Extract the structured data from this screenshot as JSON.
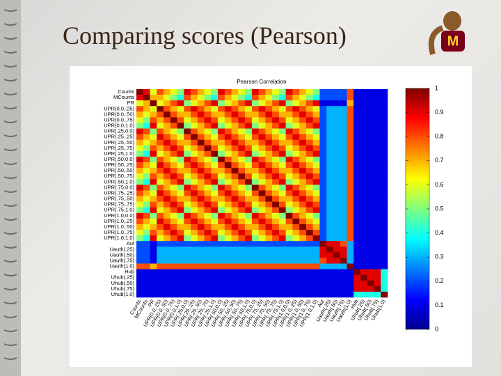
{
  "slide_title": "Comparing scores (Pearson)",
  "chart_data": {
    "type": "heatmap",
    "title": "Pearson Correlation",
    "colormap": "jet",
    "categories": [
      "Counts",
      "MCounts",
      "PR",
      "UPR(0.0,.25)",
      "UPR(0.0,.50)",
      "UPR(0.0,.75)",
      "UPR(0.0,1.0)",
      "UPR(.25,0.0)",
      "UPR(.25,.25)",
      "UPR(.25,.50)",
      "UPR(.25,.75)",
      "UPR(.25,1.0)",
      "UPR(.50,0.0)",
      "UPR(.50,.25)",
      "UPR(.50,.50)",
      "UPR(.50,.75)",
      "UPR(.50,1.0)",
      "UPR(.75,0.0)",
      "UPR(.75,.25)",
      "UPR(.75,.50)",
      "UPR(.75,.75)",
      "UPR(.75,1.0)",
      "UPR(1.0,0.0)",
      "UPR(1.0,.25)",
      "UPR(1.0,.50)",
      "UPR(1.0,.75)",
      "UPR(1.0,1.0)",
      "Aut",
      "Uauth(.25)",
      "Uauth(.50)",
      "Uauth(.75)",
      "Uauth(1.0)",
      "Hub",
      "Uhub(.25)",
      "Uhub(.50)",
      "Uhub(.75)",
      "Uhub(1.0)"
    ],
    "values": [
      [
        1,
        0.9,
        0.6,
        0.8,
        0.7,
        0.6,
        0.5,
        0.9,
        0.8,
        0.7,
        0.6,
        0.5,
        0.9,
        0.8,
        0.7,
        0.6,
        0.5,
        0.9,
        0.8,
        0.7,
        0.6,
        0.5,
        0.9,
        0.8,
        0.7,
        0.6,
        0.5,
        0.2,
        0.2,
        0.2,
        0.2,
        0.8,
        0.1,
        0.1,
        0.1,
        0.1,
        0.1
      ],
      [
        0.9,
        1,
        0.7,
        0.7,
        0.6,
        0.5,
        0.4,
        0.8,
        0.7,
        0.6,
        0.5,
        0.4,
        0.8,
        0.7,
        0.6,
        0.5,
        0.4,
        0.8,
        0.7,
        0.6,
        0.5,
        0.4,
        0.8,
        0.7,
        0.6,
        0.5,
        0.4,
        0.2,
        0.2,
        0.2,
        0.2,
        0.8,
        0.1,
        0.1,
        0.1,
        0.1,
        0.1
      ],
      [
        0.6,
        0.7,
        1,
        0.6,
        0.7,
        0.8,
        0.9,
        0.5,
        0.6,
        0.7,
        0.8,
        0.9,
        0.5,
        0.6,
        0.7,
        0.8,
        0.9,
        0.5,
        0.6,
        0.7,
        0.8,
        0.9,
        0.5,
        0.6,
        0.7,
        0.8,
        0.9,
        0.1,
        0.1,
        0.1,
        0.1,
        0.7,
        0.1,
        0.1,
        0.1,
        0.1,
        0.1
      ],
      [
        0.8,
        0.7,
        0.6,
        1,
        0.8,
        0.7,
        0.6,
        0.8,
        0.9,
        0.8,
        0.7,
        0.6,
        0.8,
        0.9,
        0.8,
        0.7,
        0.6,
        0.8,
        0.9,
        0.8,
        0.7,
        0.6,
        0.8,
        0.9,
        0.8,
        0.7,
        0.6,
        0.2,
        0.3,
        0.3,
        0.3,
        0.8,
        0.1,
        0.1,
        0.1,
        0.1,
        0.1
      ],
      [
        0.7,
        0.6,
        0.7,
        0.8,
        1,
        0.8,
        0.7,
        0.7,
        0.8,
        0.9,
        0.8,
        0.7,
        0.7,
        0.8,
        0.9,
        0.8,
        0.7,
        0.7,
        0.8,
        0.9,
        0.8,
        0.7,
        0.7,
        0.8,
        0.9,
        0.8,
        0.7,
        0.2,
        0.3,
        0.3,
        0.3,
        0.8,
        0.1,
        0.1,
        0.1,
        0.1,
        0.1
      ],
      [
        0.6,
        0.5,
        0.8,
        0.7,
        0.8,
        1,
        0.8,
        0.6,
        0.7,
        0.8,
        0.9,
        0.8,
        0.6,
        0.7,
        0.8,
        0.9,
        0.8,
        0.6,
        0.7,
        0.8,
        0.9,
        0.8,
        0.6,
        0.7,
        0.8,
        0.9,
        0.8,
        0.2,
        0.3,
        0.3,
        0.3,
        0.8,
        0.1,
        0.1,
        0.1,
        0.1,
        0.1
      ],
      [
        0.5,
        0.4,
        0.9,
        0.6,
        0.7,
        0.8,
        1,
        0.5,
        0.6,
        0.7,
        0.8,
        0.9,
        0.5,
        0.6,
        0.7,
        0.8,
        0.9,
        0.5,
        0.6,
        0.7,
        0.8,
        0.9,
        0.5,
        0.6,
        0.7,
        0.8,
        0.9,
        0.2,
        0.3,
        0.3,
        0.3,
        0.8,
        0.1,
        0.1,
        0.1,
        0.1,
        0.1
      ],
      [
        0.9,
        0.8,
        0.5,
        0.8,
        0.7,
        0.6,
        0.5,
        1,
        0.8,
        0.7,
        0.6,
        0.5,
        0.9,
        0.8,
        0.7,
        0.6,
        0.5,
        0.9,
        0.8,
        0.7,
        0.6,
        0.5,
        0.9,
        0.8,
        0.7,
        0.6,
        0.5,
        0.2,
        0.3,
        0.3,
        0.3,
        0.8,
        0.1,
        0.1,
        0.1,
        0.1,
        0.1
      ],
      [
        0.8,
        0.7,
        0.6,
        0.9,
        0.8,
        0.7,
        0.6,
        0.8,
        1,
        0.8,
        0.7,
        0.6,
        0.8,
        0.9,
        0.8,
        0.7,
        0.6,
        0.8,
        0.9,
        0.8,
        0.7,
        0.6,
        0.8,
        0.9,
        0.8,
        0.7,
        0.6,
        0.2,
        0.3,
        0.3,
        0.3,
        0.8,
        0.1,
        0.1,
        0.1,
        0.1,
        0.1
      ],
      [
        0.7,
        0.6,
        0.7,
        0.8,
        0.9,
        0.8,
        0.7,
        0.7,
        0.8,
        1,
        0.8,
        0.7,
        0.7,
        0.8,
        0.9,
        0.8,
        0.7,
        0.7,
        0.8,
        0.9,
        0.8,
        0.7,
        0.7,
        0.8,
        0.9,
        0.8,
        0.7,
        0.2,
        0.3,
        0.3,
        0.3,
        0.8,
        0.1,
        0.1,
        0.1,
        0.1,
        0.1
      ],
      [
        0.6,
        0.5,
        0.8,
        0.7,
        0.8,
        0.9,
        0.8,
        0.6,
        0.7,
        0.8,
        1,
        0.8,
        0.6,
        0.7,
        0.8,
        0.9,
        0.8,
        0.6,
        0.7,
        0.8,
        0.9,
        0.8,
        0.6,
        0.7,
        0.8,
        0.9,
        0.8,
        0.2,
        0.3,
        0.3,
        0.3,
        0.8,
        0.1,
        0.1,
        0.1,
        0.1,
        0.1
      ],
      [
        0.5,
        0.4,
        0.9,
        0.6,
        0.7,
        0.8,
        0.9,
        0.5,
        0.6,
        0.7,
        0.8,
        1,
        0.5,
        0.6,
        0.7,
        0.8,
        0.9,
        0.5,
        0.6,
        0.7,
        0.8,
        0.9,
        0.5,
        0.6,
        0.7,
        0.8,
        0.9,
        0.2,
        0.3,
        0.3,
        0.3,
        0.8,
        0.1,
        0.1,
        0.1,
        0.1,
        0.1
      ],
      [
        0.9,
        0.8,
        0.5,
        0.8,
        0.7,
        0.6,
        0.5,
        0.9,
        0.8,
        0.7,
        0.6,
        0.5,
        1,
        0.8,
        0.7,
        0.6,
        0.5,
        0.9,
        0.8,
        0.7,
        0.6,
        0.5,
        0.9,
        0.8,
        0.7,
        0.6,
        0.5,
        0.2,
        0.3,
        0.3,
        0.3,
        0.8,
        0.1,
        0.1,
        0.1,
        0.1,
        0.1
      ],
      [
        0.8,
        0.7,
        0.6,
        0.9,
        0.8,
        0.7,
        0.6,
        0.8,
        0.9,
        0.8,
        0.7,
        0.6,
        0.8,
        1,
        0.8,
        0.7,
        0.6,
        0.8,
        0.9,
        0.8,
        0.7,
        0.6,
        0.8,
        0.9,
        0.8,
        0.7,
        0.6,
        0.2,
        0.3,
        0.3,
        0.3,
        0.8,
        0.1,
        0.1,
        0.1,
        0.1,
        0.1
      ],
      [
        0.7,
        0.6,
        0.7,
        0.8,
        0.9,
        0.8,
        0.7,
        0.7,
        0.8,
        0.9,
        0.8,
        0.7,
        0.7,
        0.8,
        1,
        0.8,
        0.7,
        0.7,
        0.8,
        0.9,
        0.8,
        0.7,
        0.7,
        0.8,
        0.9,
        0.8,
        0.7,
        0.2,
        0.3,
        0.3,
        0.3,
        0.8,
        0.1,
        0.1,
        0.1,
        0.1,
        0.1
      ],
      [
        0.6,
        0.5,
        0.8,
        0.7,
        0.8,
        0.9,
        0.8,
        0.6,
        0.7,
        0.8,
        0.9,
        0.8,
        0.6,
        0.7,
        0.8,
        1,
        0.8,
        0.6,
        0.7,
        0.8,
        0.9,
        0.8,
        0.6,
        0.7,
        0.8,
        0.9,
        0.8,
        0.2,
        0.3,
        0.3,
        0.3,
        0.8,
        0.1,
        0.1,
        0.1,
        0.1,
        0.1
      ],
      [
        0.5,
        0.4,
        0.9,
        0.6,
        0.7,
        0.8,
        0.9,
        0.5,
        0.6,
        0.7,
        0.8,
        0.9,
        0.5,
        0.6,
        0.7,
        0.8,
        1,
        0.5,
        0.6,
        0.7,
        0.8,
        0.9,
        0.5,
        0.6,
        0.7,
        0.8,
        0.9,
        0.2,
        0.3,
        0.3,
        0.3,
        0.8,
        0.1,
        0.1,
        0.1,
        0.1,
        0.1
      ],
      [
        0.9,
        0.8,
        0.5,
        0.8,
        0.7,
        0.6,
        0.5,
        0.9,
        0.8,
        0.7,
        0.6,
        0.5,
        0.9,
        0.8,
        0.7,
        0.6,
        0.5,
        1,
        0.8,
        0.7,
        0.6,
        0.5,
        0.9,
        0.8,
        0.7,
        0.6,
        0.5,
        0.2,
        0.3,
        0.3,
        0.3,
        0.8,
        0.1,
        0.1,
        0.1,
        0.1,
        0.1
      ],
      [
        0.8,
        0.7,
        0.6,
        0.9,
        0.8,
        0.7,
        0.6,
        0.8,
        0.9,
        0.8,
        0.7,
        0.6,
        0.8,
        0.9,
        0.8,
        0.7,
        0.6,
        0.8,
        1,
        0.8,
        0.7,
        0.6,
        0.8,
        0.9,
        0.8,
        0.7,
        0.6,
        0.2,
        0.3,
        0.3,
        0.3,
        0.8,
        0.1,
        0.1,
        0.1,
        0.1,
        0.1
      ],
      [
        0.7,
        0.6,
        0.7,
        0.8,
        0.9,
        0.8,
        0.7,
        0.7,
        0.8,
        0.9,
        0.8,
        0.7,
        0.7,
        0.8,
        0.9,
        0.8,
        0.7,
        0.7,
        0.8,
        1,
        0.8,
        0.7,
        0.7,
        0.8,
        0.9,
        0.8,
        0.7,
        0.2,
        0.3,
        0.3,
        0.3,
        0.8,
        0.1,
        0.1,
        0.1,
        0.1,
        0.1
      ],
      [
        0.6,
        0.5,
        0.8,
        0.7,
        0.8,
        0.9,
        0.8,
        0.6,
        0.7,
        0.8,
        0.9,
        0.8,
        0.6,
        0.7,
        0.8,
        0.9,
        0.8,
        0.6,
        0.7,
        0.8,
        1,
        0.8,
        0.6,
        0.7,
        0.8,
        0.9,
        0.8,
        0.2,
        0.3,
        0.3,
        0.3,
        0.8,
        0.1,
        0.1,
        0.1,
        0.1,
        0.1
      ],
      [
        0.5,
        0.4,
        0.9,
        0.6,
        0.7,
        0.8,
        0.9,
        0.5,
        0.6,
        0.7,
        0.8,
        0.9,
        0.5,
        0.6,
        0.7,
        0.8,
        0.9,
        0.5,
        0.6,
        0.7,
        0.8,
        1,
        0.5,
        0.6,
        0.7,
        0.8,
        0.9,
        0.2,
        0.3,
        0.3,
        0.3,
        0.8,
        0.1,
        0.1,
        0.1,
        0.1,
        0.1
      ],
      [
        0.9,
        0.8,
        0.5,
        0.8,
        0.7,
        0.6,
        0.5,
        0.9,
        0.8,
        0.7,
        0.6,
        0.5,
        0.9,
        0.8,
        0.7,
        0.6,
        0.5,
        0.9,
        0.8,
        0.7,
        0.6,
        0.5,
        1,
        0.8,
        0.7,
        0.6,
        0.5,
        0.2,
        0.3,
        0.3,
        0.3,
        0.8,
        0.1,
        0.1,
        0.1,
        0.1,
        0.1
      ],
      [
        0.8,
        0.7,
        0.6,
        0.9,
        0.8,
        0.7,
        0.6,
        0.8,
        0.9,
        0.8,
        0.7,
        0.6,
        0.8,
        0.9,
        0.8,
        0.7,
        0.6,
        0.8,
        0.9,
        0.8,
        0.7,
        0.6,
        0.8,
        1,
        0.8,
        0.7,
        0.6,
        0.2,
        0.3,
        0.3,
        0.3,
        0.8,
        0.1,
        0.1,
        0.1,
        0.1,
        0.1
      ],
      [
        0.7,
        0.6,
        0.7,
        0.8,
        0.9,
        0.8,
        0.7,
        0.7,
        0.8,
        0.9,
        0.8,
        0.7,
        0.7,
        0.8,
        0.9,
        0.8,
        0.7,
        0.7,
        0.8,
        0.9,
        0.8,
        0.7,
        0.7,
        0.8,
        1,
        0.8,
        0.7,
        0.2,
        0.3,
        0.3,
        0.3,
        0.8,
        0.1,
        0.1,
        0.1,
        0.1,
        0.1
      ],
      [
        0.6,
        0.5,
        0.8,
        0.7,
        0.8,
        0.9,
        0.8,
        0.6,
        0.7,
        0.8,
        0.9,
        0.8,
        0.6,
        0.7,
        0.8,
        0.9,
        0.8,
        0.6,
        0.7,
        0.8,
        0.9,
        0.8,
        0.6,
        0.7,
        0.8,
        1,
        0.8,
        0.2,
        0.3,
        0.3,
        0.3,
        0.8,
        0.1,
        0.1,
        0.1,
        0.1,
        0.1
      ],
      [
        0.5,
        0.4,
        0.9,
        0.6,
        0.7,
        0.8,
        0.9,
        0.5,
        0.6,
        0.7,
        0.8,
        0.9,
        0.5,
        0.6,
        0.7,
        0.8,
        0.9,
        0.5,
        0.6,
        0.7,
        0.8,
        0.9,
        0.5,
        0.6,
        0.7,
        0.8,
        1,
        0.2,
        0.3,
        0.3,
        0.3,
        0.8,
        0.1,
        0.1,
        0.1,
        0.1,
        0.1
      ],
      [
        0.2,
        0.2,
        0.1,
        0.2,
        0.2,
        0.2,
        0.2,
        0.2,
        0.2,
        0.2,
        0.2,
        0.2,
        0.2,
        0.2,
        0.2,
        0.2,
        0.2,
        0.2,
        0.2,
        0.2,
        0.2,
        0.2,
        0.2,
        0.2,
        0.2,
        0.2,
        0.2,
        1,
        0.9,
        0.9,
        0.8,
        0.3,
        0.1,
        0.1,
        0.1,
        0.1,
        0.1
      ],
      [
        0.2,
        0.2,
        0.1,
        0.3,
        0.3,
        0.3,
        0.3,
        0.3,
        0.3,
        0.3,
        0.3,
        0.3,
        0.3,
        0.3,
        0.3,
        0.3,
        0.3,
        0.3,
        0.3,
        0.3,
        0.3,
        0.3,
        0.3,
        0.3,
        0.3,
        0.3,
        0.3,
        0.9,
        1,
        0.9,
        0.9,
        0.3,
        0.1,
        0.1,
        0.1,
        0.1,
        0.1
      ],
      [
        0.2,
        0.2,
        0.1,
        0.3,
        0.3,
        0.3,
        0.3,
        0.3,
        0.3,
        0.3,
        0.3,
        0.3,
        0.3,
        0.3,
        0.3,
        0.3,
        0.3,
        0.3,
        0.3,
        0.3,
        0.3,
        0.3,
        0.3,
        0.3,
        0.3,
        0.3,
        0.3,
        0.9,
        0.9,
        1,
        0.9,
        0.3,
        0.1,
        0.1,
        0.1,
        0.1,
        0.1
      ],
      [
        0.2,
        0.2,
        0.1,
        0.3,
        0.3,
        0.3,
        0.3,
        0.3,
        0.3,
        0.3,
        0.3,
        0.3,
        0.3,
        0.3,
        0.3,
        0.3,
        0.3,
        0.3,
        0.3,
        0.3,
        0.3,
        0.3,
        0.3,
        0.3,
        0.3,
        0.3,
        0.3,
        0.8,
        0.9,
        0.9,
        1,
        0.3,
        0.1,
        0.1,
        0.1,
        0.1,
        0.1
      ],
      [
        0.8,
        0.8,
        0.7,
        0.8,
        0.8,
        0.8,
        0.8,
        0.8,
        0.8,
        0.8,
        0.8,
        0.8,
        0.8,
        0.8,
        0.8,
        0.8,
        0.8,
        0.8,
        0.8,
        0.8,
        0.8,
        0.8,
        0.8,
        0.8,
        0.8,
        0.8,
        0.8,
        0.3,
        0.3,
        0.3,
        0.3,
        1,
        0.1,
        0.1,
        0.1,
        0.1,
        0.1
      ],
      [
        0.1,
        0.1,
        0.1,
        0.1,
        0.1,
        0.1,
        0.1,
        0.1,
        0.1,
        0.1,
        0.1,
        0.1,
        0.1,
        0.1,
        0.1,
        0.1,
        0.1,
        0.1,
        0.1,
        0.1,
        0.1,
        0.1,
        0.1,
        0.1,
        0.1,
        0.1,
        0.1,
        0.1,
        0.1,
        0.1,
        0.1,
        0.1,
        1,
        0.9,
        0.9,
        0.9,
        0.4
      ],
      [
        0.1,
        0.1,
        0.1,
        0.1,
        0.1,
        0.1,
        0.1,
        0.1,
        0.1,
        0.1,
        0.1,
        0.1,
        0.1,
        0.1,
        0.1,
        0.1,
        0.1,
        0.1,
        0.1,
        0.1,
        0.1,
        0.1,
        0.1,
        0.1,
        0.1,
        0.1,
        0.1,
        0.1,
        0.1,
        0.1,
        0.1,
        0.1,
        0.9,
        1,
        0.9,
        0.9,
        0.4
      ],
      [
        0.1,
        0.1,
        0.1,
        0.1,
        0.1,
        0.1,
        0.1,
        0.1,
        0.1,
        0.1,
        0.1,
        0.1,
        0.1,
        0.1,
        0.1,
        0.1,
        0.1,
        0.1,
        0.1,
        0.1,
        0.1,
        0.1,
        0.1,
        0.1,
        0.1,
        0.1,
        0.1,
        0.1,
        0.1,
        0.1,
        0.1,
        0.1,
        0.9,
        0.9,
        1,
        0.9,
        0.4
      ],
      [
        0.1,
        0.1,
        0.1,
        0.1,
        0.1,
        0.1,
        0.1,
        0.1,
        0.1,
        0.1,
        0.1,
        0.1,
        0.1,
        0.1,
        0.1,
        0.1,
        0.1,
        0.1,
        0.1,
        0.1,
        0.1,
        0.1,
        0.1,
        0.1,
        0.1,
        0.1,
        0.1,
        0.1,
        0.1,
        0.1,
        0.1,
        0.1,
        0.9,
        0.9,
        0.9,
        1,
        0.4
      ],
      [
        0.1,
        0.1,
        0.1,
        0.1,
        0.1,
        0.1,
        0.1,
        0.1,
        0.1,
        0.1,
        0.1,
        0.1,
        0.1,
        0.1,
        0.1,
        0.1,
        0.1,
        0.1,
        0.1,
        0.1,
        0.1,
        0.1,
        0.1,
        0.1,
        0.1,
        0.1,
        0.1,
        0.1,
        0.1,
        0.1,
        0.1,
        0.1,
        0.4,
        0.4,
        0.4,
        0.4,
        1
      ]
    ],
    "zlim": [
      0,
      1
    ],
    "zticks": [
      0,
      0.1,
      0.2,
      0.3,
      0.4,
      0.5,
      0.6,
      0.7,
      0.8,
      0.9,
      1
    ]
  }
}
